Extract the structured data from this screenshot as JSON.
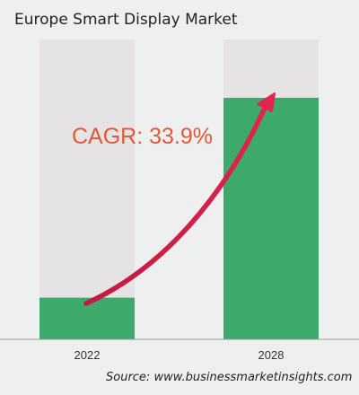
{
  "chart_data": {
    "type": "bar",
    "title": "Europe Smart Display Market",
    "categories": [
      "2022",
      "2028"
    ],
    "values": [
      1,
      5.8
    ],
    "ylim": [
      0,
      7.2
    ],
    "annotation": "CAGR: 33.9%",
    "source": "Source: www.businessmarketinsights.com",
    "grid": false,
    "colors": {
      "bar": "#3daa6b",
      "track": "#e5e3e3",
      "arrow": "#d81e4a",
      "annotation": "#e4573a"
    }
  }
}
